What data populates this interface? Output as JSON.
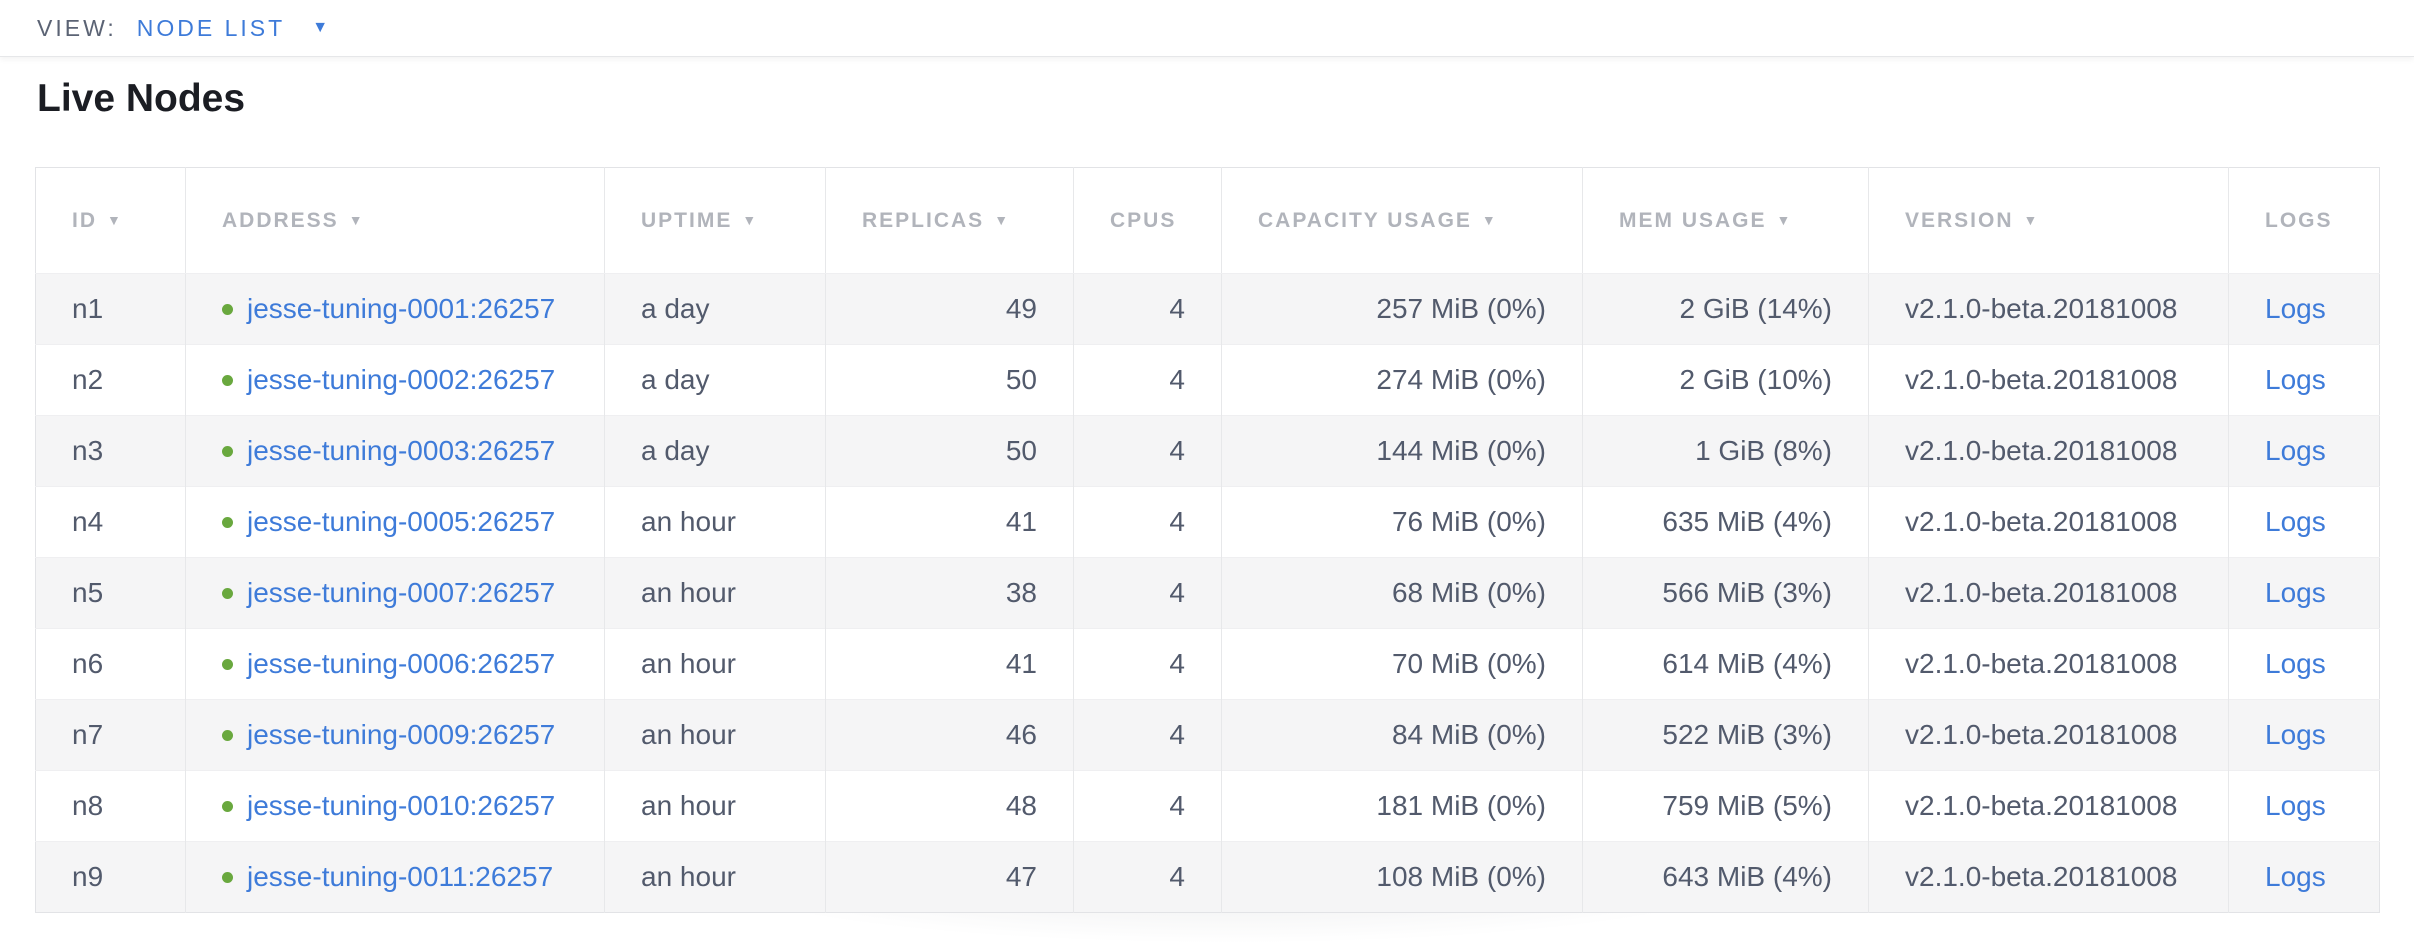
{
  "view_bar": {
    "label": "VIEW:",
    "selected": "NODE LIST"
  },
  "page": {
    "title": "Live Nodes"
  },
  "icons": {
    "sort_arrow": "▼",
    "dropdown_caret": "▼"
  },
  "colors": {
    "link_blue": "#3e7bd9",
    "health_green": "#69a83e",
    "header_gray": "#b1b4bb",
    "body_text": "#525a6c",
    "row_stripe": "#f5f5f6",
    "border": "#e7e8ea"
  },
  "table": {
    "columns": [
      {
        "key": "id",
        "label": "ID",
        "sortable": true,
        "align": "left"
      },
      {
        "key": "address",
        "label": "ADDRESS",
        "sortable": true,
        "align": "left"
      },
      {
        "key": "uptime",
        "label": "UPTIME",
        "sortable": true,
        "align": "left"
      },
      {
        "key": "replicas",
        "label": "REPLICAS",
        "sortable": true,
        "align": "right"
      },
      {
        "key": "cpus",
        "label": "CPUS",
        "sortable": false,
        "align": "right"
      },
      {
        "key": "capacity",
        "label": "CAPACITY USAGE",
        "sortable": true,
        "align": "right"
      },
      {
        "key": "mem",
        "label": "MEM USAGE",
        "sortable": true,
        "align": "right"
      },
      {
        "key": "version",
        "label": "VERSION",
        "sortable": true,
        "align": "left"
      },
      {
        "key": "logs",
        "label": "LOGS",
        "sortable": false,
        "align": "left"
      }
    ],
    "header_align": "left",
    "rows": [
      {
        "id": "n1",
        "status": "healthy",
        "address": "jesse-tuning-0001:26257",
        "uptime": "a day",
        "replicas": "49",
        "cpus": "4",
        "capacity": "257 MiB (0%)",
        "mem": "2 GiB (14%)",
        "version": "v2.1.0-beta.20181008",
        "logs": "Logs"
      },
      {
        "id": "n2",
        "status": "healthy",
        "address": "jesse-tuning-0002:26257",
        "uptime": "a day",
        "replicas": "50",
        "cpus": "4",
        "capacity": "274 MiB (0%)",
        "mem": "2 GiB (10%)",
        "version": "v2.1.0-beta.20181008",
        "logs": "Logs"
      },
      {
        "id": "n3",
        "status": "healthy",
        "address": "jesse-tuning-0003:26257",
        "uptime": "a day",
        "replicas": "50",
        "cpus": "4",
        "capacity": "144 MiB (0%)",
        "mem": "1 GiB (8%)",
        "version": "v2.1.0-beta.20181008",
        "logs": "Logs"
      },
      {
        "id": "n4",
        "status": "healthy",
        "address": "jesse-tuning-0005:26257",
        "uptime": "an hour",
        "replicas": "41",
        "cpus": "4",
        "capacity": "76 MiB (0%)",
        "mem": "635 MiB (4%)",
        "version": "v2.1.0-beta.20181008",
        "logs": "Logs"
      },
      {
        "id": "n5",
        "status": "healthy",
        "address": "jesse-tuning-0007:26257",
        "uptime": "an hour",
        "replicas": "38",
        "cpus": "4",
        "capacity": "68 MiB (0%)",
        "mem": "566 MiB (3%)",
        "version": "v2.1.0-beta.20181008",
        "logs": "Logs"
      },
      {
        "id": "n6",
        "status": "healthy",
        "address": "jesse-tuning-0006:26257",
        "uptime": "an hour",
        "replicas": "41",
        "cpus": "4",
        "capacity": "70 MiB (0%)",
        "mem": "614 MiB (4%)",
        "version": "v2.1.0-beta.20181008",
        "logs": "Logs"
      },
      {
        "id": "n7",
        "status": "healthy",
        "address": "jesse-tuning-0009:26257",
        "uptime": "an hour",
        "replicas": "46",
        "cpus": "4",
        "capacity": "84 MiB (0%)",
        "mem": "522 MiB (3%)",
        "version": "v2.1.0-beta.20181008",
        "logs": "Logs"
      },
      {
        "id": "n8",
        "status": "healthy",
        "address": "jesse-tuning-0010:26257",
        "uptime": "an hour",
        "replicas": "48",
        "cpus": "4",
        "capacity": "181 MiB (0%)",
        "mem": "759 MiB (5%)",
        "version": "v2.1.0-beta.20181008",
        "logs": "Logs"
      },
      {
        "id": "n9",
        "status": "healthy",
        "address": "jesse-tuning-0011:26257",
        "uptime": "an hour",
        "replicas": "47",
        "cpus": "4",
        "capacity": "108 MiB (0%)",
        "mem": "643 MiB (4%)",
        "version": "v2.1.0-beta.20181008",
        "logs": "Logs"
      }
    ]
  }
}
